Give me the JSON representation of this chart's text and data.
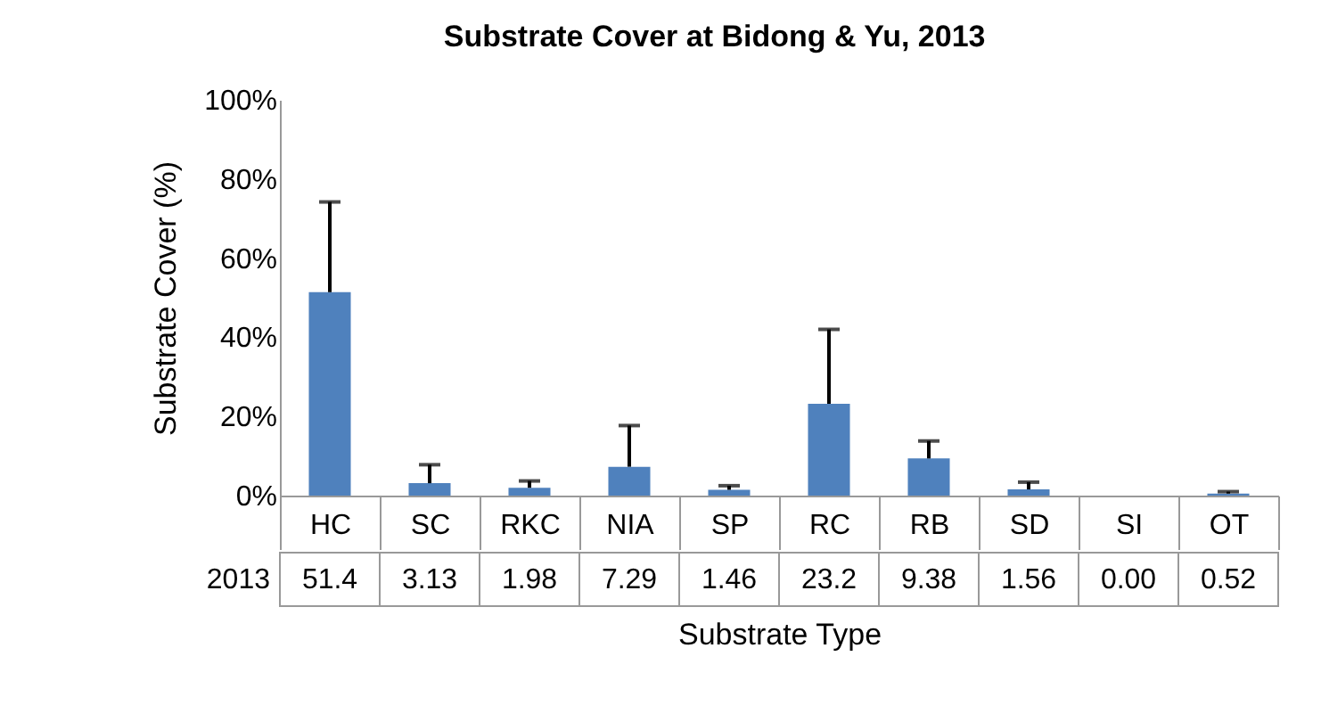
{
  "chart_data": {
    "type": "bar",
    "title": "Substrate Cover at Bidong & Yu, 2013",
    "xlabel": "Substrate Type",
    "ylabel": "Substrate Cover (%)",
    "categories": [
      "HC",
      "SC",
      "RKC",
      "NIA",
      "SP",
      "RC",
      "RB",
      "SD",
      "SI",
      "OT"
    ],
    "series": [
      {
        "name": "2013",
        "color": "#4f81bd",
        "values": [
          51.4,
          3.13,
          1.98,
          7.29,
          1.46,
          23.2,
          9.38,
          1.56,
          0.0,
          0.52
        ],
        "value_labels": [
          "51.4",
          "3.13",
          "1.98",
          "7.29",
          "1.46",
          "23.2",
          "9.38",
          "1.56",
          "0.00",
          "0.52"
        ],
        "errors": [
          [
            51.4,
            74.2
          ],
          [
            3.13,
            7.8
          ],
          [
            1.98,
            3.7
          ],
          [
            7.29,
            17.7
          ],
          [
            1.46,
            2.5
          ],
          [
            23.2,
            42.0
          ],
          [
            9.38,
            13.8
          ],
          [
            1.56,
            3.4
          ],
          null,
          [
            0.52,
            1.0
          ]
        ]
      }
    ],
    "ylim": [
      0,
      100
    ],
    "yticks": [
      {
        "value": 0,
        "label": "0%"
      },
      {
        "value": 20,
        "label": "20%"
      },
      {
        "value": 40,
        "label": "40%"
      },
      {
        "value": 60,
        "label": "60%"
      },
      {
        "value": 80,
        "label": "80%"
      },
      {
        "value": 100,
        "label": "100%"
      }
    ],
    "grid": false
  }
}
